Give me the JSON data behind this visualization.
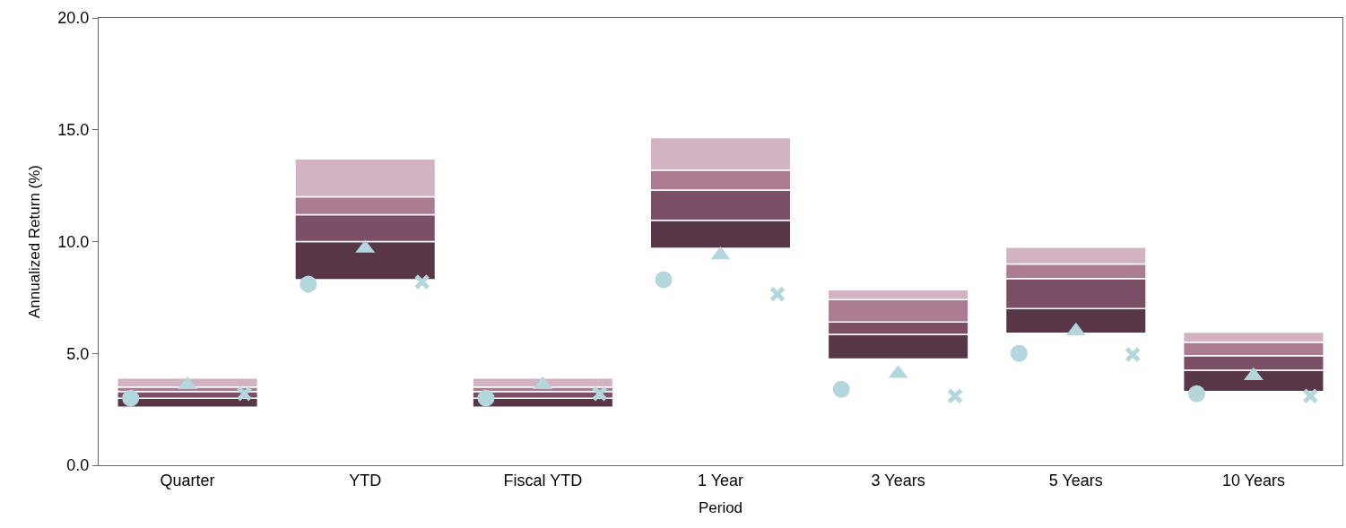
{
  "chart_data": {
    "type": "bar",
    "xlabel": "Period",
    "ylabel": "Annualized Return (%)",
    "categories": [
      "Quarter",
      "YTD",
      "Fiscal YTD",
      "1 Year",
      "3 Years",
      "5 Years",
      "10 Years"
    ],
    "series": [
      {
        "type": "bar",
        "color": "#573645",
        "base": [
          2.6,
          8.3,
          2.6,
          9.7,
          4.75,
          5.9,
          3.3
        ],
        "values": [
          0.4,
          1.7,
          0.4,
          1.25,
          1.1,
          1.1,
          0.95
        ]
      },
      {
        "type": "bar",
        "color": "#7b4f66",
        "base": [
          3.0,
          10.0,
          3.0,
          10.95,
          5.85,
          7.0,
          4.25
        ],
        "values": [
          0.3,
          1.2,
          0.3,
          1.35,
          0.55,
          1.35,
          0.65
        ]
      },
      {
        "type": "bar",
        "color": "#ab7b91",
        "base": [
          3.3,
          11.2,
          3.3,
          12.3,
          6.4,
          8.35,
          4.9
        ],
        "values": [
          0.2,
          0.8,
          0.2,
          0.9,
          1.0,
          0.65,
          0.6
        ]
      },
      {
        "type": "bar",
        "color": "#d1b3c1",
        "base": [
          3.5,
          12.0,
          3.5,
          13.2,
          7.4,
          9.0,
          5.5
        ],
        "values": [
          0.4,
          1.7,
          0.4,
          1.45,
          0.45,
          0.75,
          0.45
        ]
      },
      {
        "type": "scatter",
        "marker": "circle",
        "color": "#b3d7dd",
        "values": [
          3.0,
          8.1,
          3.0,
          8.3,
          3.4,
          5.0,
          3.2
        ]
      },
      {
        "type": "scatter",
        "marker": "triangle",
        "color": "#b3d7dd",
        "values": [
          3.6,
          9.7,
          3.6,
          9.4,
          4.1,
          6.0,
          4.0
        ]
      },
      {
        "type": "scatter",
        "marker": "cross",
        "color": "#b3d7dd",
        "values": [
          3.2,
          8.2,
          3.2,
          7.65,
          3.1,
          4.95,
          3.1
        ]
      }
    ],
    "ylim": [
      0,
      20
    ],
    "yticks": [
      {
        "value": 0,
        "label": "0.0"
      },
      {
        "value": 5,
        "label": "5.0"
      },
      {
        "value": 10,
        "label": "10.0"
      },
      {
        "value": 15,
        "label": "15.0"
      },
      {
        "value": 20,
        "label": "20.0"
      }
    ]
  }
}
